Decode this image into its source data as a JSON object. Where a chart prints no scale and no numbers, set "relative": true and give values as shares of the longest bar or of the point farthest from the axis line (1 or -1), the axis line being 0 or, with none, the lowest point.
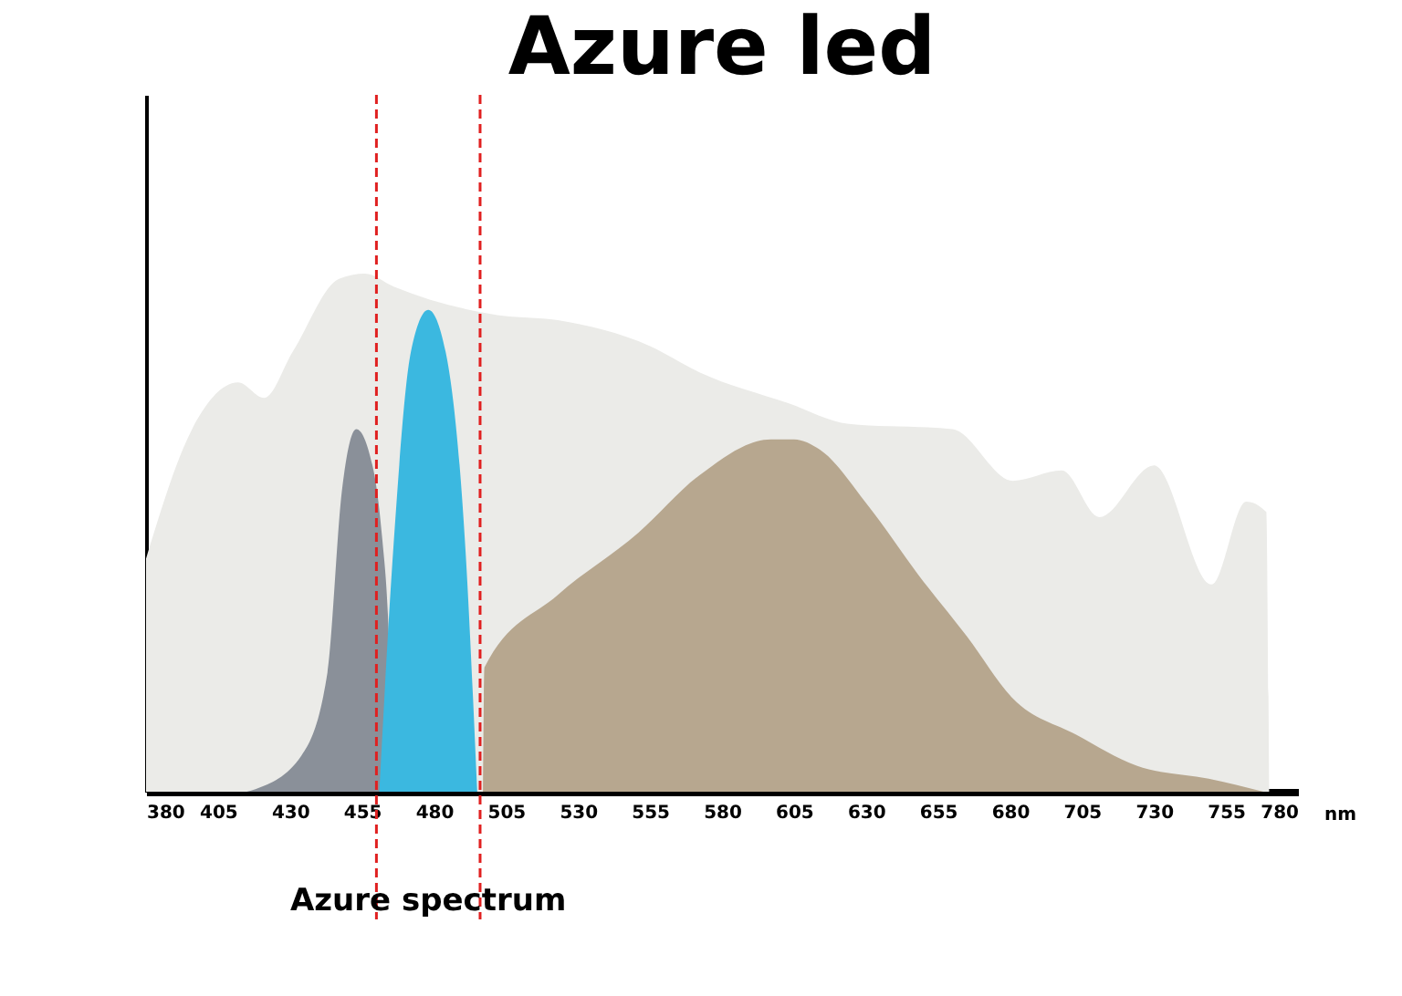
{
  "chart_data": {
    "type": "area",
    "title": "Azure led",
    "relative": true,
    "xlim": [
      380,
      780
    ],
    "xticks": [
      380,
      405,
      430,
      455,
      480,
      505,
      530,
      555,
      580,
      605,
      630,
      655,
      680,
      705,
      730,
      755,
      780
    ],
    "xlabel": "nm",
    "series": [
      {
        "color": "#ebebe8",
        "x": [
          380,
          396,
          412,
          421,
          431,
          447,
          456,
          466,
          502,
          523,
          555,
          572,
          603,
          624,
          660,
          681,
          698,
          711,
          730,
          750,
          762,
          769,
          770
        ],
        "values": [
          0.45,
          0.7,
          0.79,
          0.76,
          0.85,
          0.99,
          1.0,
          0.975,
          0.92,
          0.91,
          0.86,
          0.81,
          0.75,
          0.71,
          0.7,
          0.6,
          0.62,
          0.53,
          0.63,
          0.4,
          0.56,
          0.54,
          0
        ]
      },
      {
        "color": "#8a9099",
        "x": [
          415,
          418,
          434,
          443,
          448,
          453,
          459,
          462,
          464,
          466
        ],
        "values": [
          0,
          0.005,
          0.07,
          0.23,
          0.58,
          0.7,
          0.62,
          0.49,
          0.34,
          0
        ]
      },
      {
        "color": "#b7a78f",
        "x": [
          497,
          497.5,
          523,
          551,
          572,
          597,
          605,
          614,
          631,
          648,
          665,
          681,
          703,
          724,
          749,
          768
        ],
        "values": [
          0,
          0.24,
          0.38,
          0.5,
          0.61,
          0.68,
          0.68,
          0.66,
          0.55,
          0.42,
          0.3,
          0.18,
          0.11,
          0.05,
          0.025,
          0
        ]
      },
      {
        "color": "#3bb8e0",
        "x": [
          461,
          466,
          472,
          478,
          484,
          491,
          495
        ],
        "values": [
          0,
          0.48,
          0.85,
          0.93,
          0.85,
          0.46,
          0
        ]
      }
    ],
    "ref_lines": [
      {
        "axis": "x",
        "value": 460,
        "color": "#e02020",
        "line_style": "dashed"
      },
      {
        "axis": "x",
        "value": 496,
        "color": "#e02020",
        "line_style": "dashed"
      }
    ],
    "annotations": [
      "Azure spectrum"
    ],
    "grid": false
  }
}
